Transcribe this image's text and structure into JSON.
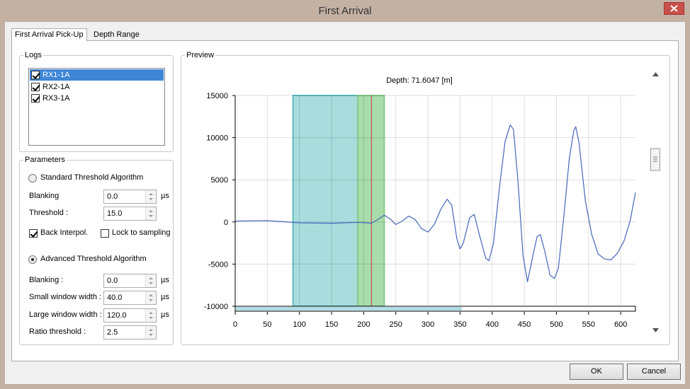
{
  "window": {
    "title": "First Arrival"
  },
  "tabs": [
    {
      "label": "First Arrival Pick-Up",
      "active": true
    },
    {
      "label": "Depth Range",
      "active": false
    }
  ],
  "logs": {
    "title": "Logs",
    "items": [
      {
        "label": "RX1-1A",
        "checked": true,
        "selected": true
      },
      {
        "label": "RX2-1A",
        "checked": true,
        "selected": false
      },
      {
        "label": "RX3-1A",
        "checked": true,
        "selected": false
      }
    ]
  },
  "parameters": {
    "title": "Parameters",
    "standard": {
      "label": "Standard Threshold Algorithm",
      "selected": false,
      "fields": [
        {
          "label": "Blanking",
          "value": "0.0",
          "unit": "µs"
        },
        {
          "label": "Threshold :",
          "value": "15.0"
        }
      ],
      "back_interp": {
        "label": "Back Interpol.",
        "checked": true
      },
      "lock": {
        "label": "Lock to sampling",
        "checked": false
      }
    },
    "advanced": {
      "label": "Advanced Threshold Algorithm",
      "selected": true,
      "fields": [
        {
          "label": "Blanking :",
          "value": "0.0",
          "unit": "µs"
        },
        {
          "label": "Small window width :",
          "value": "40.0",
          "unit": "µs"
        },
        {
          "label": "Large window width :",
          "value": "120.0",
          "unit": "µs"
        },
        {
          "label": "Ratio threshold :",
          "value": "2.5"
        }
      ]
    }
  },
  "preview": {
    "title": "Preview"
  },
  "chart_data": {
    "type": "line",
    "title": "Depth: 71.6047 [m]",
    "color": "#4466bb",
    "x": [
      0,
      50,
      100,
      150,
      190,
      205,
      212,
      220,
      232,
      242,
      250,
      260,
      270,
      280,
      290,
      300,
      310,
      320,
      330,
      337,
      345,
      350,
      355,
      365,
      372,
      380,
      390,
      395,
      402,
      412,
      420,
      428,
      433,
      440,
      448,
      455,
      462,
      470,
      475,
      482,
      490,
      497,
      503,
      512,
      520,
      527,
      530,
      535,
      545,
      555,
      565,
      575,
      585,
      595,
      605,
      615,
      623
    ],
    "values": [
      100,
      150,
      -100,
      -150,
      -50,
      -100,
      -150,
      200,
      800,
      300,
      -300,
      100,
      700,
      300,
      -800,
      -1200,
      -300,
      1500,
      2700,
      2000,
      -2000,
      -3200,
      -2500,
      500,
      900,
      -1500,
      -4300,
      -4600,
      -2500,
      4500,
      9500,
      11500,
      11000,
      5000,
      -4000,
      -7100,
      -4500,
      -1700,
      -1500,
      -3500,
      -6300,
      -6700,
      -5500,
      1000,
      7500,
      10800,
      11300,
      9500,
      2500,
      -1500,
      -3800,
      -4400,
      -4500,
      -3700,
      -2300,
      200,
      3500
    ],
    "xlim": [
      0,
      623
    ],
    "ylim": [
      -10000,
      15000
    ],
    "xticks": [
      0,
      50,
      100,
      150,
      200,
      250,
      300,
      350,
      400,
      450,
      500,
      550,
      600
    ],
    "yticks": [
      -10000,
      -5000,
      0,
      5000,
      10000,
      15000
    ],
    "grid": true,
    "regions": [
      {
        "range": [
          90,
          191
        ],
        "color": "#a9dcdc",
        "edge": "#5cc0c0"
      },
      {
        "range": [
          191,
          232
        ],
        "color": "#a9dcab",
        "edge": "#86cc8a"
      }
    ],
    "marker": {
      "value": 212,
      "color": "#cc3333"
    }
  },
  "buttons": [
    {
      "label": "OK"
    },
    {
      "label": "Cancel"
    }
  ]
}
